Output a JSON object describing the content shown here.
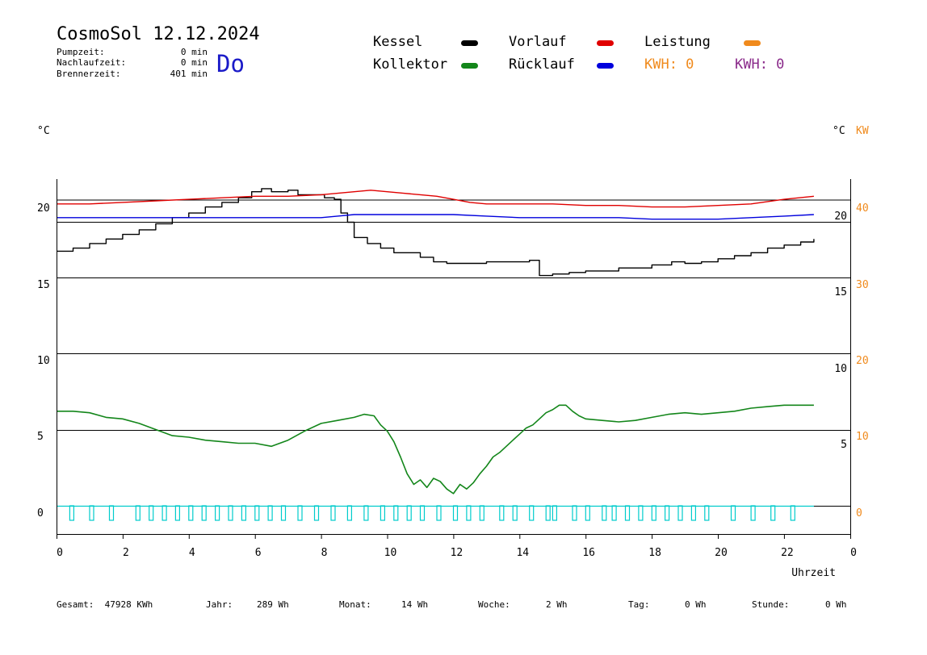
{
  "header": {
    "title": "CosmoSol 12.12.2024",
    "day": "Do",
    "info": [
      {
        "label": "Pumpzeit:",
        "value": "0 min"
      },
      {
        "label": "Nachlaufzeit:",
        "value": "0 min"
      },
      {
        "label": "Brennerzeit:",
        "value": "401 min"
      }
    ]
  },
  "legend": {
    "kessel": {
      "label": "Kessel",
      "color": "#000000"
    },
    "vorlauf": {
      "label": "Vorlauf",
      "color": "#e00000"
    },
    "leistung": {
      "label": "Leistung",
      "color": "#f08a1c"
    },
    "kollektor": {
      "label": "Kollektor",
      "color": "#13861a"
    },
    "ruecklauf": {
      "label": "Rücklauf",
      "color": "#0000dd"
    },
    "kwh1": {
      "label": "KWH: 0",
      "color": "#f08a1c"
    },
    "kwh2": {
      "label": "KWH: 0",
      "color": "#8a2a8a"
    }
  },
  "units": {
    "left": "°C",
    "right": "°C",
    "right_kw": "KW"
  },
  "footer": [
    {
      "label": "Gesamt:",
      "value": "47928 KWh"
    },
    {
      "label": "Jahr:",
      "value": "289 Wh"
    },
    {
      "label": "Monat:",
      "value": "14 Wh"
    },
    {
      "label": "Woche:",
      "value": "2 Wh"
    },
    {
      "label": "Tag:",
      "value": "0 Wh"
    },
    {
      "label": "Stunde:",
      "value": "0 Wh"
    }
  ],
  "chart_data": {
    "type": "line",
    "xlabel": "Uhrzeit",
    "xlim": [
      0,
      24
    ],
    "x_ticks": [
      "0",
      "2",
      "4",
      "6",
      "8",
      "10",
      "12",
      "14",
      "16",
      "18",
      "20",
      "22",
      "0"
    ],
    "ylim_left": [
      -2,
      22
    ],
    "y_ticks_left": [
      "0",
      "5",
      "10",
      "15",
      "20"
    ],
    "y_ticks_right_temp": [
      "5",
      "10",
      "15",
      "20"
    ],
    "y_ticks_right_kw": [
      "0",
      "10",
      "20",
      "30",
      "40"
    ],
    "grid": "horizontal",
    "series": [
      {
        "name": "Kessel",
        "color": "#000000",
        "x": [
          0,
          0.5,
          1,
          1.5,
          2,
          2.5,
          3,
          3.5,
          4,
          4.5,
          5,
          5.5,
          5.9,
          6.2,
          6.5,
          7,
          7.3,
          7.8,
          8.1,
          8.4,
          8.6,
          8.8,
          9,
          9.4,
          9.8,
          10.2,
          10.6,
          11,
          11.4,
          11.8,
          12.5,
          13,
          13.6,
          14.3,
          14.6,
          15,
          15.5,
          16,
          17,
          18,
          18.6,
          19,
          19.5,
          20,
          20.5,
          21,
          21.5,
          22,
          22.5,
          22.9
        ],
        "y": [
          16.7,
          16.9,
          17.2,
          17.5,
          17.8,
          18.1,
          18.5,
          18.9,
          19.2,
          19.6,
          19.9,
          20.2,
          20.6,
          20.8,
          20.6,
          20.7,
          20.4,
          20.4,
          20.2,
          20.1,
          19.2,
          18.6,
          17.6,
          17.2,
          16.9,
          16.6,
          16.6,
          16.3,
          16.0,
          15.9,
          15.9,
          16.0,
          16.0,
          16.1,
          15.1,
          15.2,
          15.3,
          15.4,
          15.6,
          15.8,
          16.0,
          15.9,
          16.0,
          16.2,
          16.4,
          16.6,
          16.9,
          17.1,
          17.3,
          17.5
        ]
      },
      {
        "name": "Vorlauf",
        "color": "#e00000",
        "x": [
          0,
          1,
          2,
          3,
          4,
          5,
          6,
          7,
          8,
          8.5,
          9,
          9.5,
          10,
          10.5,
          11,
          11.5,
          12,
          12.5,
          13,
          14,
          15,
          16,
          17,
          18,
          19,
          20,
          21,
          22,
          22.9
        ],
        "y": [
          19.8,
          19.8,
          19.9,
          20.0,
          20.1,
          20.2,
          20.3,
          20.3,
          20.4,
          20.5,
          20.6,
          20.7,
          20.6,
          20.5,
          20.4,
          20.3,
          20.1,
          19.9,
          19.8,
          19.8,
          19.8,
          19.7,
          19.7,
          19.6,
          19.6,
          19.7,
          19.8,
          20.1,
          20.3
        ]
      },
      {
        "name": "Rücklauf",
        "color": "#0000dd",
        "x": [
          0,
          2,
          4,
          6,
          7,
          8,
          8.5,
          9,
          10,
          11,
          12,
          13,
          14,
          15,
          16,
          17,
          18,
          19,
          20,
          21,
          22,
          22.9
        ],
        "y": [
          18.9,
          18.9,
          18.9,
          18.9,
          18.9,
          18.9,
          19.0,
          19.1,
          19.1,
          19.1,
          19.1,
          19.0,
          18.9,
          18.9,
          18.9,
          18.9,
          18.8,
          18.8,
          18.8,
          18.9,
          19.0,
          19.1
        ]
      },
      {
        "name": "Kollektor",
        "color": "#13861a",
        "x": [
          0,
          0.5,
          1,
          1.5,
          2,
          2.5,
          3,
          3.5,
          4,
          4.5,
          5,
          5.5,
          6,
          6.5,
          7,
          7.5,
          8,
          8.5,
          9,
          9.3,
          9.6,
          9.8,
          10,
          10.2,
          10.4,
          10.6,
          10.8,
          11,
          11.2,
          11.4,
          11.6,
          11.8,
          12,
          12.2,
          12.4,
          12.6,
          12.8,
          13,
          13.2,
          13.4,
          13.6,
          13.8,
          14,
          14.2,
          14.4,
          14.6,
          14.8,
          15,
          15.2,
          15.4,
          15.6,
          15.8,
          16,
          16.5,
          17,
          17.5,
          18,
          18.5,
          19,
          19.5,
          20,
          20.5,
          21,
          21.5,
          22,
          22.5,
          22.9
        ],
        "y": [
          6.2,
          6.2,
          6.1,
          5.8,
          5.7,
          5.4,
          5.0,
          4.6,
          4.5,
          4.3,
          4.2,
          4.1,
          4.1,
          3.9,
          4.3,
          4.9,
          5.4,
          5.6,
          5.8,
          6.0,
          5.9,
          5.3,
          4.9,
          4.2,
          3.2,
          2.1,
          1.4,
          1.7,
          1.2,
          1.8,
          1.6,
          1.1,
          0.8,
          1.4,
          1.1,
          1.5,
          2.1,
          2.6,
          3.2,
          3.5,
          3.9,
          4.3,
          4.7,
          5.1,
          5.3,
          5.7,
          6.1,
          6.3,
          6.6,
          6.6,
          6.2,
          5.9,
          5.7,
          5.6,
          5.5,
          5.6,
          5.8,
          6.0,
          6.1,
          6.0,
          6.1,
          6.2,
          6.4,
          6.5,
          6.6,
          6.6,
          6.6
        ]
      },
      {
        "name": "Leistung",
        "color": "#00cccc",
        "x": [
          0.4,
          1,
          1.6,
          2.4,
          2.8,
          3.2,
          3.6,
          4,
          4.4,
          4.8,
          5.2,
          5.6,
          6,
          6.4,
          6.8,
          7.3,
          7.8,
          8.3,
          8.8,
          9.3,
          9.8,
          10.2,
          10.6,
          11,
          11.5,
          12,
          12.4,
          12.8,
          13.4,
          13.8,
          14.3,
          14.8,
          15,
          15.6,
          16,
          16.5,
          16.8,
          17.2,
          17.6,
          18,
          18.4,
          18.8,
          19.2,
          19.6,
          20.4,
          21,
          21.6,
          22.2
        ],
        "pulse_kw": 1
      }
    ]
  }
}
